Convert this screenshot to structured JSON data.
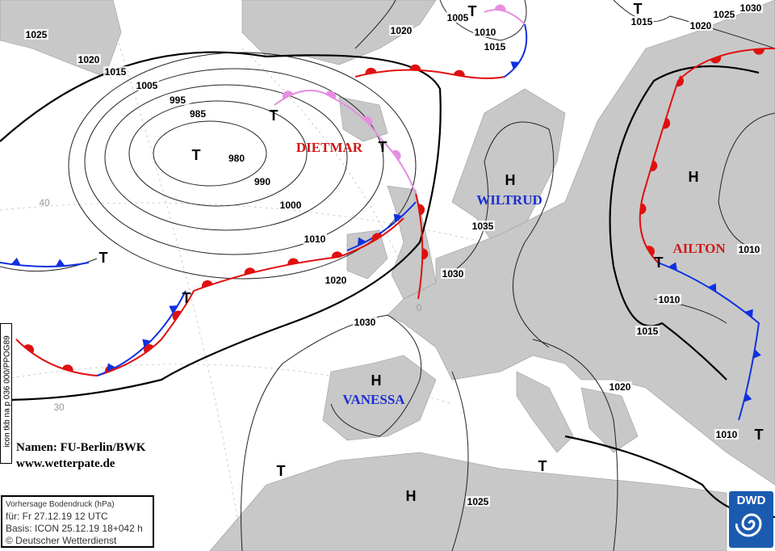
{
  "info_box": {
    "title": "Vorhersage Bodendruck (hPa)",
    "valid": "für:  Fr 27.12.19  12 UTC",
    "base": "Basis: ICON  25.12.19 18+042 h",
    "copyright": "© Deutscher Wetterdienst"
  },
  "side_code": "icon tkb na p 036 000/PPOG89",
  "credits": {
    "names": "Namen: FU-Berlin/BWK",
    "url": "www.wetterpate.de"
  },
  "logo": "DWD",
  "lat_labels": [
    "40",
    "30"
  ],
  "lon_label": "0",
  "systems": [
    {
      "name": "DIETMAR",
      "color": "#d01818"
    },
    {
      "name": "WILTRUD",
      "color": "#1a2fd0"
    },
    {
      "name": "AILTON",
      "color": "#d01818"
    },
    {
      "name": "VANESSA",
      "color": "#1a2fd0"
    }
  ],
  "centers": [
    "T",
    "T",
    "T",
    "T",
    "T",
    "T",
    "T",
    "T",
    "T",
    "T",
    "T",
    "H",
    "H",
    "H",
    "H"
  ],
  "isobar_labels": [
    "1025",
    "1020",
    "1015",
    "1005",
    "995",
    "985",
    "980",
    "990",
    "1000",
    "1010",
    "1020",
    "1030",
    "1030",
    "1035",
    "1020",
    "1005",
    "1010",
    "1015",
    "1015",
    "1025",
    "1030",
    "1020",
    "1010",
    "1010",
    "1015",
    "1020",
    "1010",
    "1025"
  ],
  "colors": {
    "warm_front": "#e01010",
    "cold_front": "#1030e0",
    "occlusion": "#e58ee0",
    "land": "#c8c8c8"
  }
}
